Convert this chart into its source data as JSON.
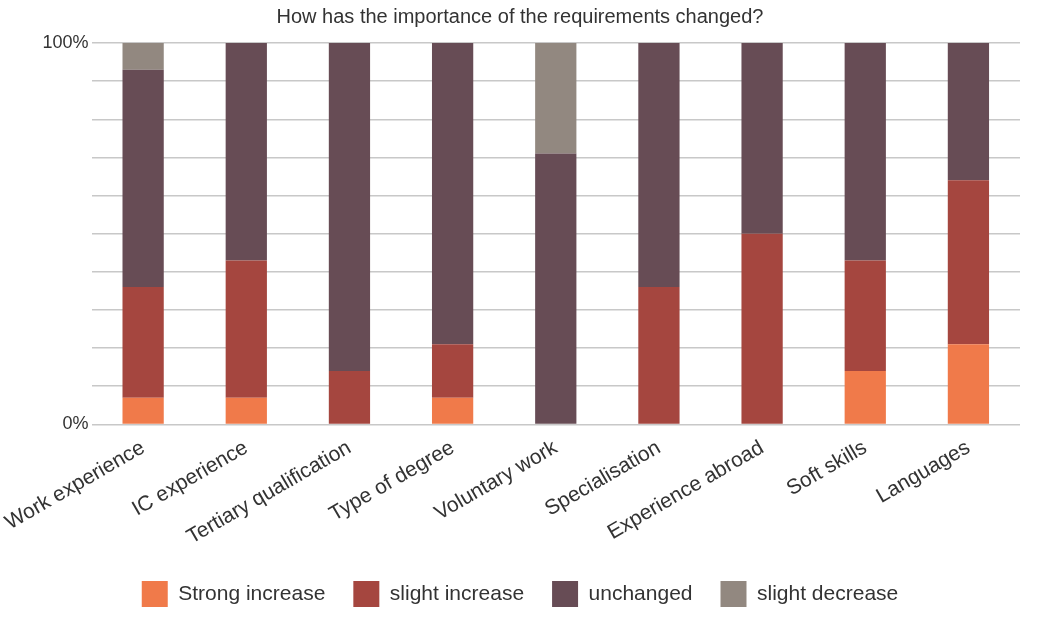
{
  "chart_data": {
    "type": "bar",
    "title": "How has the importance of the requirements changed?",
    "categories": [
      "Work experience",
      "IC experience",
      "Tertiary qualification",
      "Type of degree",
      "Voluntary work",
      "Specialisation",
      "Experience abroad",
      "Soft skills",
      "Languages"
    ],
    "stacked": true,
    "series": [
      {
        "name": "Strong increase",
        "color": "#f07a4a",
        "values": [
          7,
          7,
          0,
          7,
          0,
          0,
          0,
          14,
          21
        ]
      },
      {
        "name": "slight increase",
        "color": "#a5463f",
        "values": [
          29,
          36,
          14,
          14,
          0,
          36,
          50,
          29,
          43
        ]
      },
      {
        "name": "unchanged",
        "color": "#674c55",
        "values": [
          57,
          57,
          86,
          79,
          71,
          64,
          50,
          57,
          36
        ]
      },
      {
        "name": "slight decrease",
        "color": "#928880",
        "values": [
          7,
          0,
          0,
          0,
          29,
          0,
          0,
          0,
          0
        ]
      }
    ],
    "ylim": [
      0,
      100
    ],
    "yticks": [
      {
        "value": 0,
        "label": "0%"
      },
      {
        "value": 10,
        "label": null
      },
      {
        "value": 20,
        "label": null
      },
      {
        "value": 30,
        "label": null
      },
      {
        "value": 40,
        "label": null
      },
      {
        "value": 50,
        "label": null
      },
      {
        "value": 60,
        "label": null
      },
      {
        "value": 70,
        "label": null
      },
      {
        "value": 80,
        "label": null
      },
      {
        "value": 90,
        "label": null
      },
      {
        "value": 100,
        "label": "100%"
      }
    ],
    "grid": "y",
    "legend": "bottom"
  }
}
